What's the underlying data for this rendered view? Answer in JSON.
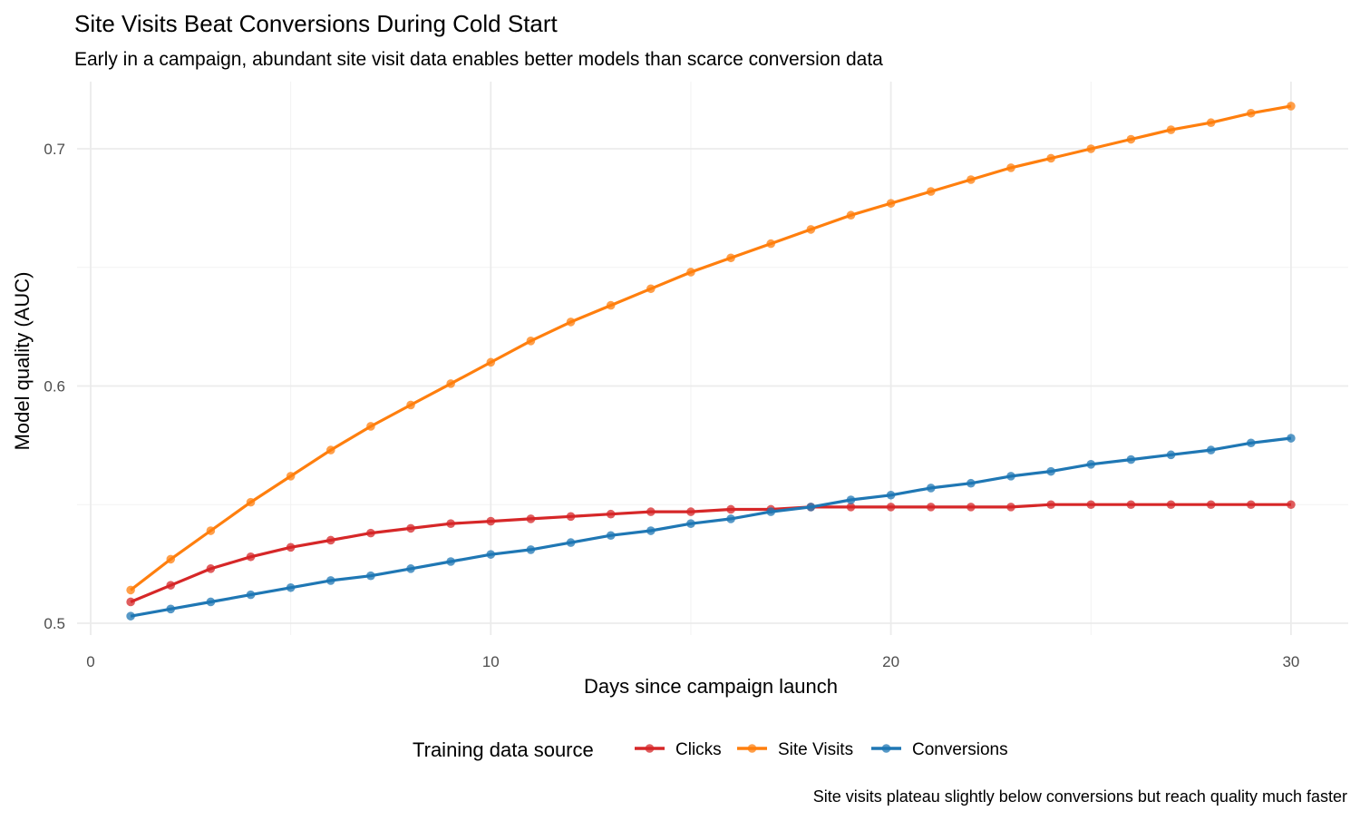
{
  "chart_data": {
    "type": "line",
    "title": "Site Visits Beat Conversions During Cold Start",
    "subtitle": "Early in a campaign, abundant site visit data enables better models than scarce conversion data",
    "caption": "Site visits plateau slightly below conversions but reach quality much faster",
    "xlabel": "Days since campaign launch",
    "ylabel": "Model quality (AUC)",
    "xlim": [
      0,
      30
    ],
    "ylim": [
      0.5,
      0.72
    ],
    "x_ticks": [
      0,
      10,
      20,
      30
    ],
    "y_ticks": [
      0.5,
      0.6,
      0.7
    ],
    "y_tick_labels": [
      "0.5",
      "0.6",
      "0.7"
    ],
    "grid": true,
    "legend": {
      "title": "Training data source",
      "placement": "bottom"
    },
    "x": [
      1,
      2,
      3,
      4,
      5,
      6,
      7,
      8,
      9,
      10,
      11,
      12,
      13,
      14,
      15,
      16,
      17,
      18,
      19,
      20,
      21,
      22,
      23,
      24,
      25,
      26,
      27,
      28,
      29,
      30
    ],
    "series": [
      {
        "name": "Clicks",
        "color": "#d62728",
        "values": [
          0.509,
          0.516,
          0.523,
          0.528,
          0.532,
          0.535,
          0.538,
          0.54,
          0.542,
          0.543,
          0.544,
          0.545,
          0.546,
          0.547,
          0.547,
          0.548,
          0.548,
          0.549,
          0.549,
          0.549,
          0.549,
          0.549,
          0.549,
          0.55,
          0.55,
          0.55,
          0.55,
          0.55,
          0.55,
          0.55
        ]
      },
      {
        "name": "Site Visits",
        "color": "#ff7f0e",
        "values": [
          0.514,
          0.527,
          0.539,
          0.551,
          0.562,
          0.573,
          0.583,
          0.592,
          0.601,
          0.61,
          0.619,
          0.627,
          0.634,
          0.641,
          0.648,
          0.654,
          0.66,
          0.666,
          0.672,
          0.677,
          0.682,
          0.687,
          0.692,
          0.696,
          0.7,
          0.704,
          0.708,
          0.711,
          0.715,
          0.718
        ]
      },
      {
        "name": "Conversions",
        "color": "#1f77b4",
        "values": [
          0.503,
          0.506,
          0.509,
          0.512,
          0.515,
          0.518,
          0.52,
          0.523,
          0.526,
          0.529,
          0.531,
          0.534,
          0.537,
          0.539,
          0.542,
          0.544,
          0.547,
          0.549,
          0.552,
          0.554,
          0.557,
          0.559,
          0.562,
          0.564,
          0.567,
          0.569,
          0.571,
          0.573,
          0.576,
          0.578
        ]
      }
    ]
  }
}
